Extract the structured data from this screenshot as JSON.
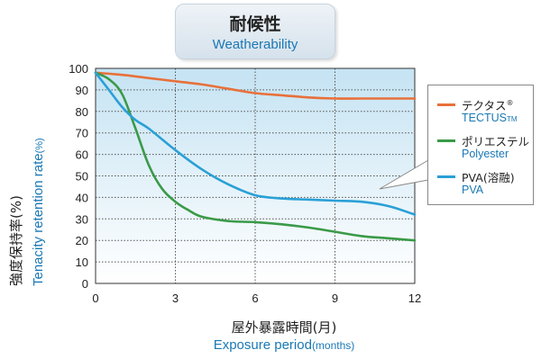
{
  "header": {
    "title_jp": "耐候性",
    "title_en": "Weatherability"
  },
  "axes": {
    "ylabel_jp": "強度保持率(%)",
    "ylabel_en_main": "Tenacity retention rate",
    "ylabel_en_unit": "(%)",
    "xlabel_jp": "屋外暴露時間(月)",
    "xlabel_en_main": "Exposure period",
    "xlabel_en_unit": "(months)"
  },
  "legend": {
    "items": [
      {
        "label_jp": "テクタス",
        "label_jp_mark": "®",
        "label_en": "TECTUS",
        "label_en_mark": "TM",
        "color": "#e8703a"
      },
      {
        "label_jp": "ポリエステル",
        "label_jp_mark": "",
        "label_en": "Polyester",
        "label_en_mark": "",
        "color": "#3a9a48"
      },
      {
        "label_jp": "PVA(溶融)",
        "label_jp_mark": "",
        "label_en": "PVA",
        "label_en_mark": "",
        "color": "#2aa0d6"
      }
    ]
  },
  "chart_data": {
    "type": "line",
    "title": "耐候性 Weatherability",
    "xlabel": "屋外暴露時間(月) Exposure period(months)",
    "ylabel": "強度保持率(%) Tenacity retention rate(%)",
    "xlim": [
      0,
      12
    ],
    "ylim": [
      0,
      100
    ],
    "xticks": [
      0,
      3,
      6,
      9,
      12
    ],
    "yticks": [
      0,
      10,
      20,
      30,
      40,
      50,
      60,
      70,
      80,
      90,
      100
    ],
    "grid": true,
    "legend_position": "right",
    "series": [
      {
        "name": "テクタス TECTUS",
        "color": "#e8703a",
        "x": [
          0,
          1,
          2,
          3,
          4,
          5,
          6,
          7,
          8,
          9,
          10,
          11,
          12
        ],
        "y": [
          98,
          97,
          95.5,
          94,
          92.5,
          90.5,
          88.5,
          87.5,
          86.5,
          86,
          86,
          86,
          86
        ]
      },
      {
        "name": "ポリエステル Polyester",
        "color": "#3a9a48",
        "x": [
          0,
          0.5,
          1,
          1.5,
          2,
          2.5,
          3,
          3.5,
          4,
          5,
          6,
          7,
          8,
          9,
          10,
          11,
          12
        ],
        "y": [
          98,
          95,
          88,
          72,
          55,
          44,
          38,
          34,
          31,
          29,
          28.5,
          27.5,
          26,
          24,
          22,
          21,
          20
        ]
      },
      {
        "name": "PVA(溶融) PVA",
        "color": "#2aa0d6",
        "x": [
          0,
          0.5,
          1,
          1.5,
          2,
          3,
          4,
          5,
          6,
          7,
          8,
          9,
          10,
          11,
          12
        ],
        "y": [
          98,
          90,
          82,
          76,
          72,
          62,
          53,
          46,
          41,
          39.5,
          39,
          38.5,
          38,
          36,
          32
        ]
      }
    ]
  }
}
